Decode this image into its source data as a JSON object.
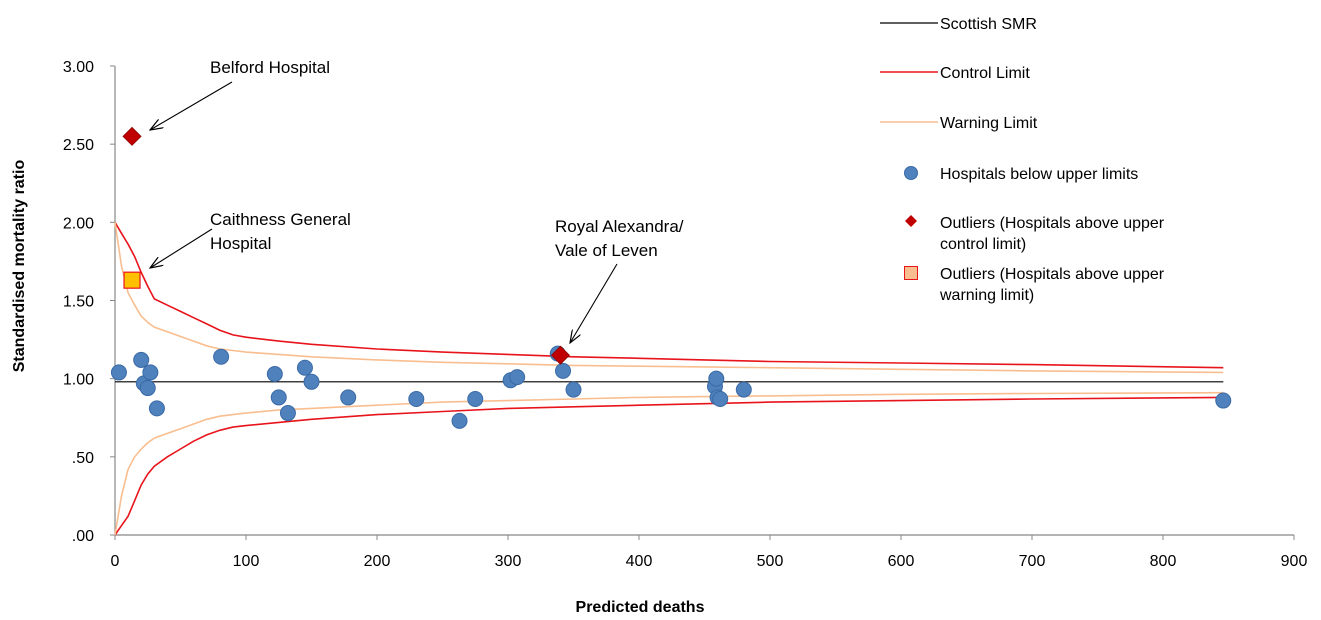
{
  "chart_data": {
    "type": "scatter",
    "xlabel": "Predicted deaths",
    "ylabel": "Standardised mortality ratio",
    "xlim": [
      0,
      900
    ],
    "ylim": [
      0,
      3
    ],
    "x_ticks": [
      "0",
      "100",
      "200",
      "300",
      "400",
      "500",
      "600",
      "700",
      "800",
      "900"
    ],
    "x_tick_values": [
      0,
      100,
      200,
      300,
      400,
      500,
      600,
      700,
      800,
      900
    ],
    "y_ticks": [
      ".00",
      ".50",
      "1.00",
      "1.50",
      "2.00",
      "2.50",
      "3.00"
    ],
    "y_tick_values": [
      0,
      0.5,
      1.0,
      1.5,
      2.0,
      2.5,
      3.0
    ],
    "grid": false,
    "legend_position": "top-right",
    "colors": {
      "scottish_smr": "#000000",
      "control_limit": "#e8141b",
      "warning_limit": "#f9be8f",
      "hospitals": "#4f81bd",
      "hospitals_edge": "#3a6aa6",
      "outlier_control": "#c00000",
      "outlier_warning_fill": "#ffc000",
      "outlier_warning_edge": "#e8141b"
    },
    "scottish_smr_value": 0.98,
    "series": [
      {
        "name": "Scottish SMR",
        "kind": "line",
        "x": [
          0,
          846
        ],
        "y": [
          0.98,
          0.98
        ]
      },
      {
        "name": "Control Limit",
        "kind": "line",
        "upper": {
          "x": [
            0,
            5,
            10,
            15,
            20,
            25,
            30,
            40,
            50,
            60,
            70,
            80,
            90,
            100,
            125,
            150,
            200,
            250,
            300,
            350,
            400,
            450,
            500,
            600,
            700,
            846
          ],
          "y": [
            2.0,
            1.93,
            1.86,
            1.78,
            1.68,
            1.59,
            1.51,
            1.47,
            1.43,
            1.39,
            1.35,
            1.31,
            1.28,
            1.265,
            1.24,
            1.22,
            1.19,
            1.17,
            1.155,
            1.14,
            1.13,
            1.12,
            1.11,
            1.1,
            1.09,
            1.07
          ]
        },
        "lower": {
          "x": [
            0,
            5,
            10,
            15,
            20,
            25,
            30,
            40,
            50,
            60,
            70,
            80,
            90,
            100,
            125,
            150,
            200,
            250,
            300,
            350,
            400,
            450,
            500,
            600,
            700,
            846
          ],
          "y": [
            0.0,
            0.06,
            0.12,
            0.22,
            0.32,
            0.39,
            0.44,
            0.5,
            0.55,
            0.6,
            0.64,
            0.67,
            0.69,
            0.7,
            0.72,
            0.74,
            0.77,
            0.79,
            0.81,
            0.82,
            0.83,
            0.84,
            0.85,
            0.86,
            0.87,
            0.88
          ]
        }
      },
      {
        "name": "Warning Limit",
        "kind": "line",
        "upper": {
          "x": [
            0,
            5,
            10,
            15,
            20,
            25,
            30,
            40,
            50,
            60,
            70,
            80,
            90,
            100,
            125,
            150,
            200,
            250,
            300,
            350,
            400,
            450,
            500,
            600,
            700,
            846
          ],
          "y": [
            2.0,
            1.72,
            1.55,
            1.47,
            1.4,
            1.36,
            1.33,
            1.3,
            1.27,
            1.24,
            1.21,
            1.19,
            1.18,
            1.17,
            1.155,
            1.14,
            1.12,
            1.105,
            1.095,
            1.085,
            1.08,
            1.075,
            1.07,
            1.06,
            1.05,
            1.04
          ]
        },
        "lower": {
          "x": [
            0,
            5,
            10,
            15,
            20,
            25,
            30,
            40,
            50,
            60,
            70,
            80,
            90,
            100,
            125,
            150,
            200,
            250,
            300,
            350,
            400,
            450,
            500,
            600,
            700,
            846
          ],
          "y": [
            0.0,
            0.25,
            0.42,
            0.5,
            0.55,
            0.59,
            0.62,
            0.65,
            0.68,
            0.71,
            0.74,
            0.76,
            0.77,
            0.78,
            0.8,
            0.81,
            0.83,
            0.85,
            0.86,
            0.87,
            0.88,
            0.885,
            0.89,
            0.9,
            0.905,
            0.91
          ]
        }
      },
      {
        "name": "Hospitals below upper limits",
        "kind": "scatter",
        "marker": "circle",
        "points": [
          {
            "x": 3,
            "y": 1.04
          },
          {
            "x": 20,
            "y": 1.12
          },
          {
            "x": 22,
            "y": 0.97
          },
          {
            "x": 25,
            "y": 0.94
          },
          {
            "x": 27,
            "y": 1.04
          },
          {
            "x": 32,
            "y": 0.81
          },
          {
            "x": 81,
            "y": 1.14
          },
          {
            "x": 122,
            "y": 1.03
          },
          {
            "x": 125,
            "y": 0.88
          },
          {
            "x": 132,
            "y": 0.78
          },
          {
            "x": 145,
            "y": 1.07
          },
          {
            "x": 150,
            "y": 0.98
          },
          {
            "x": 178,
            "y": 0.88
          },
          {
            "x": 230,
            "y": 0.87
          },
          {
            "x": 263,
            "y": 0.73
          },
          {
            "x": 275,
            "y": 0.87
          },
          {
            "x": 302,
            "y": 0.99
          },
          {
            "x": 307,
            "y": 1.01
          },
          {
            "x": 338,
            "y": 1.16
          },
          {
            "x": 342,
            "y": 1.05
          },
          {
            "x": 350,
            "y": 0.93
          },
          {
            "x": 458,
            "y": 0.95
          },
          {
            "x": 459,
            "y": 1.0
          },
          {
            "x": 460,
            "y": 0.88
          },
          {
            "x": 462,
            "y": 0.87
          },
          {
            "x": 480,
            "y": 0.93
          },
          {
            "x": 846,
            "y": 0.86
          }
        ]
      },
      {
        "name": "Outliers (Hospitals above upper control limit)",
        "kind": "scatter",
        "marker": "diamond",
        "points": [
          {
            "x": 13,
            "y": 2.55
          },
          {
            "x": 340,
            "y": 1.15
          }
        ]
      },
      {
        "name": "Outliers (Hospitals above upper warning limit)",
        "kind": "scatter",
        "marker": "square",
        "points": [
          {
            "x": 13,
            "y": 1.63
          }
        ]
      }
    ],
    "legend": {
      "scottish_smr": "Scottish SMR",
      "control_limit": "Control Limit",
      "warning_limit": "Warning Limit",
      "hospitals": "Hospitals below upper limits",
      "outlier_control_line1": "Outliers (Hospitals above upper",
      "outlier_control_line2": "control limit)",
      "outlier_warning_line1": "Outliers (Hospitals above upper",
      "outlier_warning_line2": "warning limit)"
    },
    "annotations": [
      {
        "id": "belford",
        "lines": [
          "Belford Hospital"
        ],
        "points_to": {
          "x": 13,
          "y": 2.55
        }
      },
      {
        "id": "caithness",
        "lines": [
          "Caithness General",
          "Hospital"
        ],
        "points_to": {
          "x": 13,
          "y": 1.63
        }
      },
      {
        "id": "royal",
        "lines": [
          "Royal Alexandra/",
          "Vale of Leven"
        ],
        "points_to": {
          "x": 340,
          "y": 1.15
        }
      }
    ]
  }
}
